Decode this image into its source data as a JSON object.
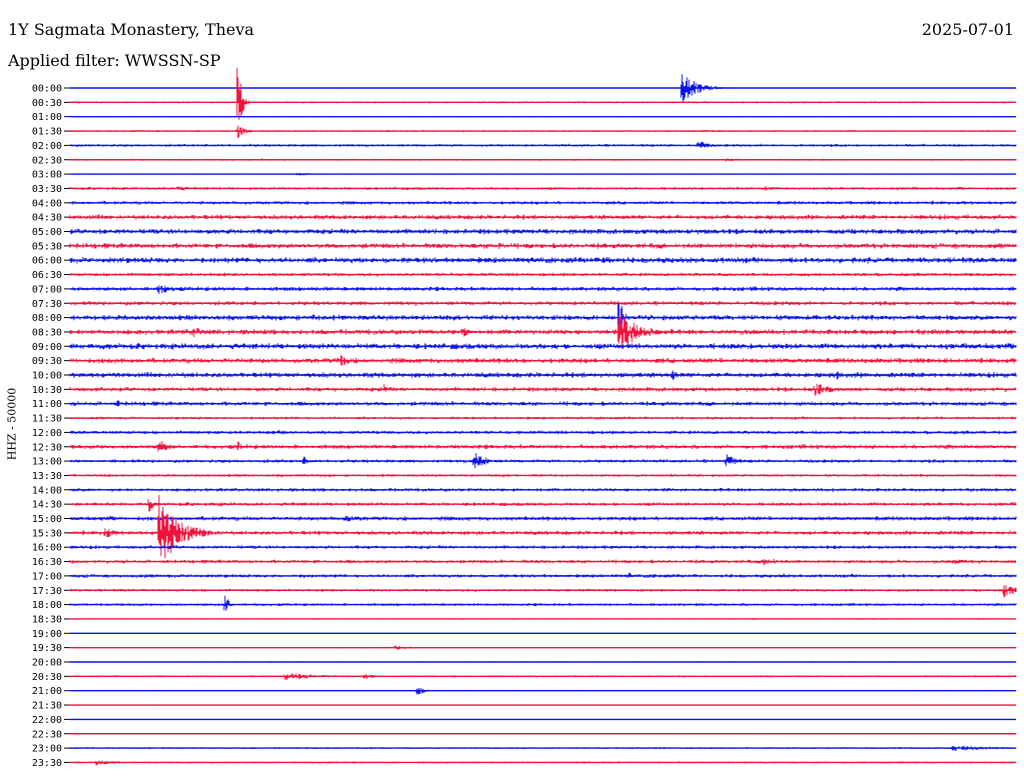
{
  "header": {
    "station": "1Y Sagmata Monastery, Theva",
    "date": "2025-07-01",
    "filter": "Applied filter: WWSSN-SP"
  },
  "colors": {
    "blue": "#0a14e6",
    "red": "#f0143c"
  },
  "chart_data": {
    "type": "line",
    "ylabel": "HHZ - 50000",
    "rows": [
      "00:00",
      "00:30",
      "01:00",
      "01:30",
      "02:00",
      "02:30",
      "03:00",
      "03:30",
      "04:00",
      "04:30",
      "05:00",
      "05:30",
      "06:00",
      "06:30",
      "07:00",
      "07:30",
      "08:00",
      "08:30",
      "09:00",
      "09:30",
      "10:00",
      "10:30",
      "11:00",
      "11:30",
      "12:00",
      "12:30",
      "13:00",
      "13:30",
      "14:00",
      "14:30",
      "15:00",
      "15:30",
      "16:00",
      "16:30",
      "17:00",
      "17:30",
      "18:00",
      "18:30",
      "19:00",
      "19:30",
      "20:00",
      "20:30",
      "21:00",
      "21:30",
      "22:00",
      "22:30",
      "23:00",
      "23:30"
    ],
    "row_colors": [
      "blue",
      "red"
    ],
    "x_range_minutes": [
      0,
      30
    ],
    "noise_levels": [
      0.4,
      0.8,
      0.4,
      0.8,
      1.2,
      0.8,
      0.5,
      1.2,
      1.5,
      2.0,
      2.2,
      2.2,
      2.4,
      1.5,
      1.8,
      1.8,
      2.2,
      2.2,
      2.4,
      2.2,
      2.2,
      1.8,
      1.8,
      1.2,
      1.5,
      1.8,
      1.5,
      1.2,
      1.5,
      1.5,
      1.8,
      1.8,
      1.5,
      1.5,
      1.5,
      1.2,
      1.2,
      0.6,
      0.3,
      0.5,
      0.5,
      0.8,
      0.5,
      0.4,
      0.3,
      0.4,
      0.8,
      0.8
    ],
    "events": [
      {
        "row": 0,
        "minute": 19.4,
        "amplitude": 16,
        "duration": 0.8
      },
      {
        "row": 1,
        "minute": 5.3,
        "amplitude": 60,
        "duration": 0.2
      },
      {
        "row": 3,
        "minute": 5.3,
        "amplitude": 8,
        "duration": 0.4
      },
      {
        "row": 4,
        "minute": 19.9,
        "amplitude": 6,
        "duration": 0.6
      },
      {
        "row": 5,
        "minute": 6.0,
        "amplitude": 3,
        "duration": 0.2
      },
      {
        "row": 5,
        "minute": 20.7,
        "amplitude": 2,
        "duration": 1.5
      },
      {
        "row": 6,
        "minute": 7.2,
        "amplitude": 2,
        "duration": 0.8
      },
      {
        "row": 7,
        "minute": 3.4,
        "amplitude": 3,
        "duration": 0.8
      },
      {
        "row": 7,
        "minute": 22.0,
        "amplitude": 3,
        "duration": 0.6
      },
      {
        "row": 11,
        "minute": 13.6,
        "amplitude": 4,
        "duration": 0.6
      },
      {
        "row": 12,
        "minute": 16.9,
        "amplitude": 4,
        "duration": 1.2
      },
      {
        "row": 14,
        "minute": 2.8,
        "amplitude": 5,
        "duration": 1.2
      },
      {
        "row": 16,
        "minute": 7.7,
        "amplitude": 6,
        "duration": 0.2
      },
      {
        "row": 16,
        "minute": 17.4,
        "amplitude": 28,
        "duration": 0.2
      },
      {
        "row": 17,
        "minute": 3.9,
        "amplitude": 6,
        "duration": 0.6
      },
      {
        "row": 17,
        "minute": 12.4,
        "amplitude": 10,
        "duration": 0.3
      },
      {
        "row": 17,
        "minute": 17.4,
        "amplitude": 22,
        "duration": 1.0
      },
      {
        "row": 19,
        "minute": 8.5,
        "amplitude": 8,
        "duration": 0.6
      },
      {
        "row": 20,
        "minute": 19.1,
        "amplitude": 7,
        "duration": 0.2
      },
      {
        "row": 20,
        "minute": 24.3,
        "amplitude": 6,
        "duration": 0.2
      },
      {
        "row": 21,
        "minute": 9.9,
        "amplitude": 7,
        "duration": 0.3
      },
      {
        "row": 21,
        "minute": 23.6,
        "amplitude": 7,
        "duration": 1.0
      },
      {
        "row": 22,
        "minute": 1.5,
        "amplitude": 5,
        "duration": 0.2
      },
      {
        "row": 24,
        "minute": 6.6,
        "amplitude": 3,
        "duration": 0.6
      },
      {
        "row": 25,
        "minute": 2.8,
        "amplitude": 9,
        "duration": 0.5
      },
      {
        "row": 25,
        "minute": 5.3,
        "amplitude": 8,
        "duration": 0.2
      },
      {
        "row": 26,
        "minute": 7.4,
        "amplitude": 6,
        "duration": 0.2
      },
      {
        "row": 26,
        "minute": 12.8,
        "amplitude": 12,
        "duration": 0.6
      },
      {
        "row": 26,
        "minute": 20.8,
        "amplitude": 8,
        "duration": 0.5
      },
      {
        "row": 29,
        "minute": 2.5,
        "amplitude": 10,
        "duration": 0.2
      },
      {
        "row": 29,
        "minute": 4.7,
        "amplitude": 4,
        "duration": 0.2
      },
      {
        "row": 30,
        "minute": 8.7,
        "amplitude": 4,
        "duration": 1.2
      },
      {
        "row": 31,
        "minute": 1.1,
        "amplitude": 7,
        "duration": 0.5
      },
      {
        "row": 31,
        "minute": 2.8,
        "amplitude": 40,
        "duration": 1.0
      },
      {
        "row": 33,
        "minute": 22.0,
        "amplitude": 5,
        "duration": 1.0
      },
      {
        "row": 33,
        "minute": 28.0,
        "amplitude": 3,
        "duration": 1.2
      },
      {
        "row": 34,
        "minute": 7.4,
        "amplitude": 4,
        "duration": 0.2
      },
      {
        "row": 34,
        "minute": 17.7,
        "amplitude": 5,
        "duration": 0.2
      },
      {
        "row": 34,
        "minute": 18.5,
        "amplitude": 3,
        "duration": 0.4
      },
      {
        "row": 34,
        "minute": 22.6,
        "amplitude": 4,
        "duration": 0.2
      },
      {
        "row": 35,
        "minute": 29.6,
        "amplitude": 8,
        "duration": 0.6
      },
      {
        "row": 36,
        "minute": 4.9,
        "amplitude": 14,
        "duration": 0.2
      },
      {
        "row": 39,
        "minute": 10.3,
        "amplitude": 3,
        "duration": 0.8
      },
      {
        "row": 41,
        "minute": 6.8,
        "amplitude": 4,
        "duration": 2.0
      },
      {
        "row": 41,
        "minute": 9.3,
        "amplitude": 3,
        "duration": 0.8
      },
      {
        "row": 42,
        "minute": 11.0,
        "amplitude": 5,
        "duration": 0.4
      },
      {
        "row": 43,
        "minute": 30.1,
        "amplitude": 6,
        "duration": 0.3
      },
      {
        "row": 46,
        "minute": 28.0,
        "amplitude": 3,
        "duration": 2.5
      },
      {
        "row": 47,
        "minute": 0.8,
        "amplitude": 3,
        "duration": 1.2
      }
    ]
  }
}
